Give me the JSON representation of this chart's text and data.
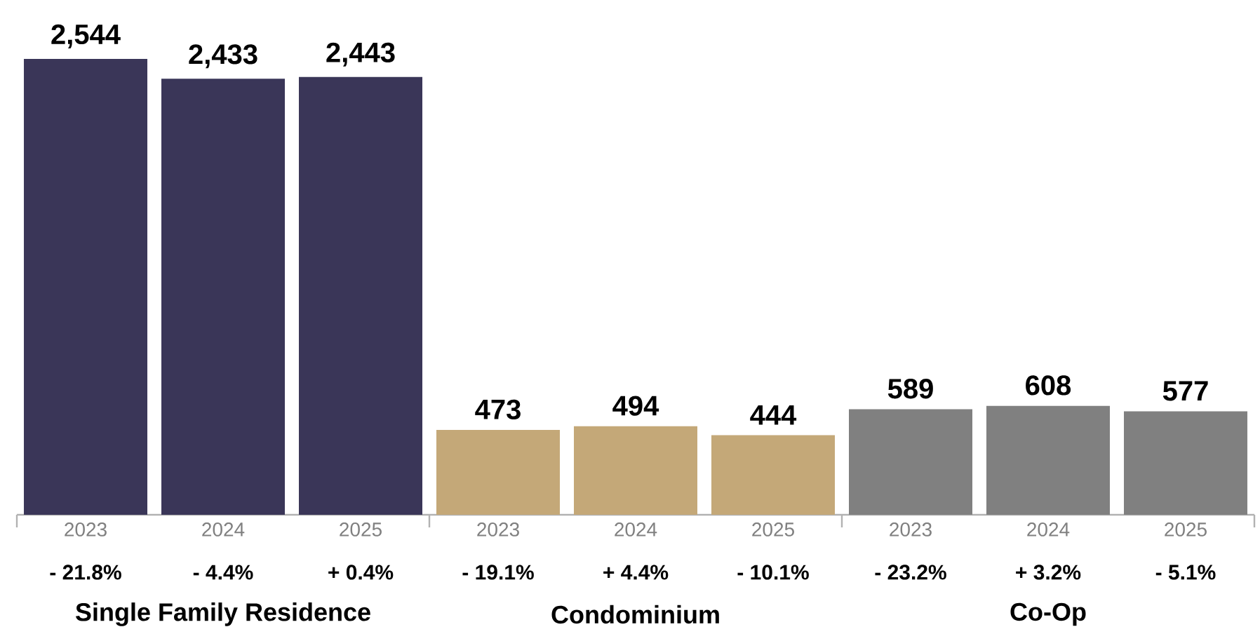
{
  "chart_data": {
    "type": "bar",
    "categories": [
      "2023",
      "2024",
      "2025",
      "2023",
      "2024",
      "2025",
      "2023",
      "2024",
      "2025"
    ],
    "values": [
      2544,
      2433,
      2443,
      473,
      494,
      444,
      589,
      608,
      577
    ],
    "colors": [
      "#3a3658",
      "#3a3658",
      "#3a3658",
      "#c4a878",
      "#c4a878",
      "#c4a878",
      "#808080",
      "#808080",
      "#808080"
    ],
    "value_labels": [
      "2,544",
      "2,433",
      "2,443",
      "473",
      "494",
      "444",
      "589",
      "608",
      "577"
    ],
    "annotations": [
      "- 21.8%",
      "- 4.4%",
      "+ 0.4%",
      "- 19.1%",
      "+ 4.4%",
      "- 10.1%",
      "- 23.2%",
      "+ 3.2%",
      "- 5.1%",
      "Single Family Residence",
      "Condominium",
      "Co-Op"
    ]
  }
}
